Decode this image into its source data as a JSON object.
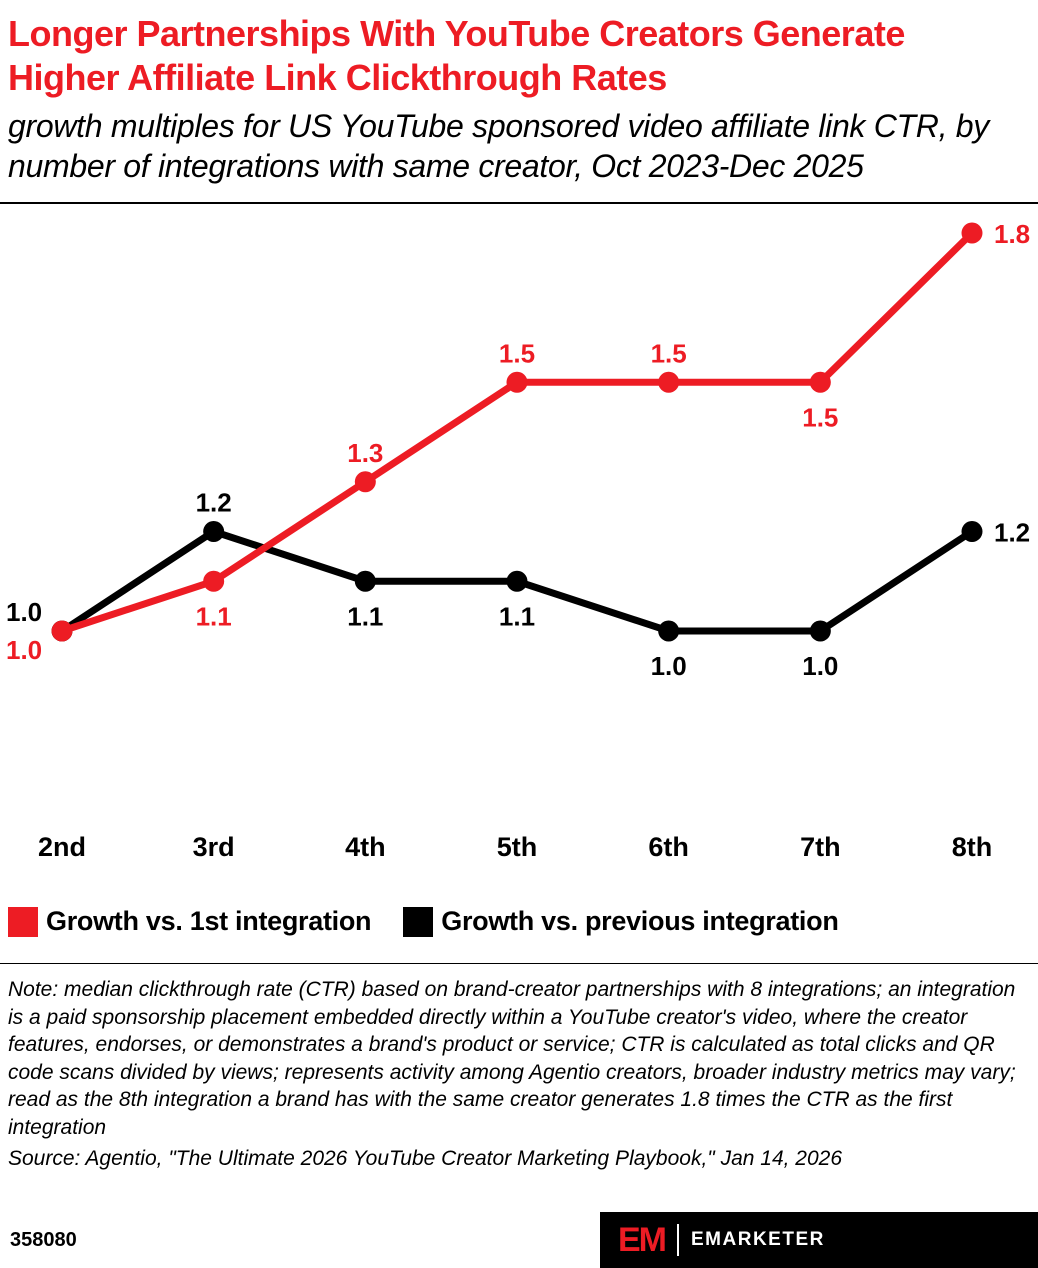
{
  "colors": {
    "accent": "#ED1C24",
    "text": "#000000",
    "background": "#FFFFFF"
  },
  "header": {
    "title": "Longer Partnerships With YouTube Creators Generate Higher Affiliate Link Clickthrough Rates",
    "subtitle": "growth multiples for US YouTube sponsored video affiliate link CTR, by number of integrations with same creator, Oct 2023-Dec 2025"
  },
  "chart_data": {
    "type": "line",
    "categories": [
      "2nd",
      "3rd",
      "4th",
      "5th",
      "6th",
      "7th",
      "8th"
    ],
    "series": [
      {
        "name": "Growth vs. 1st integration",
        "color": "#ED1C24",
        "values": [
          1.0,
          1.1,
          1.3,
          1.5,
          1.5,
          1.5,
          1.8
        ],
        "labels": [
          "1.0",
          "1.1",
          "1.3",
          "1.5",
          "1.5",
          "1.5",
          "1.8"
        ],
        "label_pos": [
          "left-below",
          "below",
          "above",
          "above",
          "above",
          "below",
          "right"
        ]
      },
      {
        "name": "Growth vs. previous integration",
        "color": "#000000",
        "values": [
          1.0,
          1.2,
          1.1,
          1.1,
          1.0,
          1.0,
          1.2
        ],
        "labels": [
          "1.0",
          "1.2",
          "1.1",
          "1.1",
          "1.0",
          "1.0",
          "1.2"
        ],
        "label_pos": [
          "left-above",
          "above",
          "below",
          "below",
          "below",
          "below",
          "right"
        ]
      }
    ],
    "title": "Longer Partnerships With YouTube Creators Generate Higher Affiliate Link Clickthrough Rates",
    "xlabel": "",
    "ylabel": "",
    "ylim": [
      0.55,
      1.92
    ],
    "grid": false,
    "markers": true,
    "legend_position": "below"
  },
  "note": "Note: median clickthrough rate (CTR) based on brand-creator partnerships with 8 integrations; an integration is a paid sponsorship placement embedded directly within a YouTube creator's video, where the creator features, endorses, or demonstrates a brand's product or service; CTR is calculated as total clicks and QR code scans divided by views; represents activity among Agentio creators, broader industry metrics may vary; read as the 8th integration a brand has with the same creator generates 1.8 times the CTR as the first integration",
  "source": "Source: Agentio, \"The Ultimate 2026 YouTube Creator Marketing Playbook,\" Jan 14, 2026",
  "footer": {
    "chart_id": "358080",
    "logo_em": "EM",
    "logo_text": "EMARKETER"
  }
}
